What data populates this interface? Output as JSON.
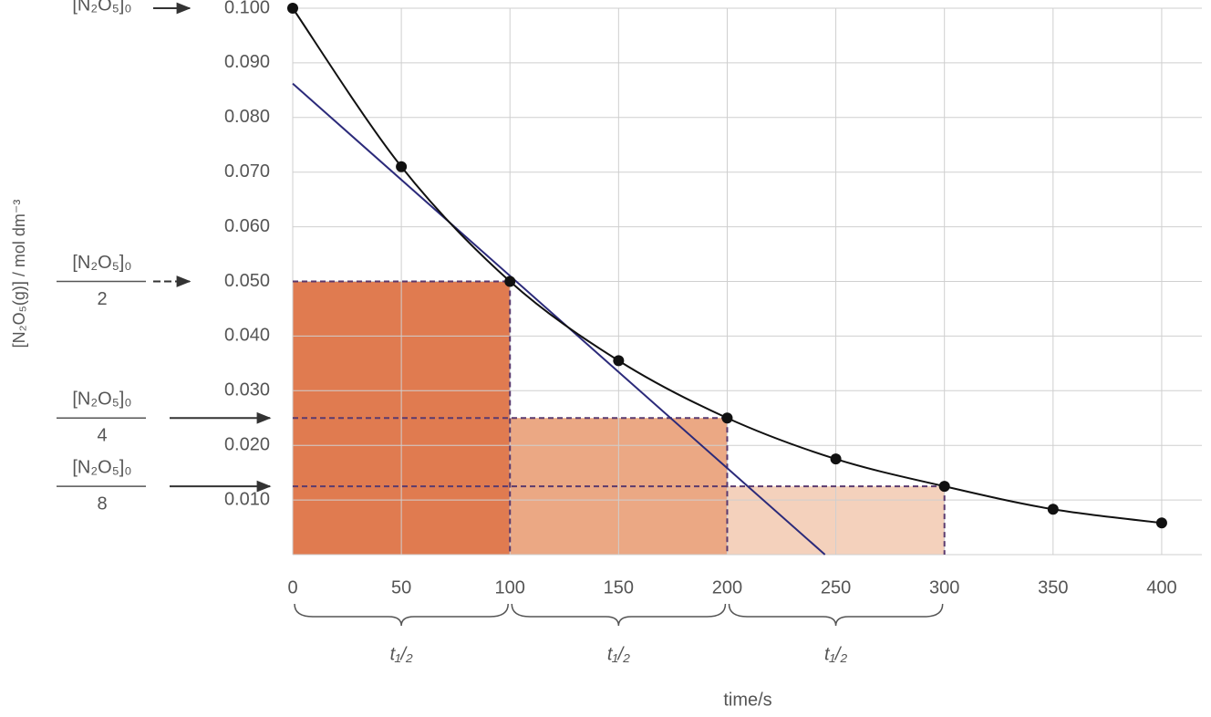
{
  "chart_data": {
    "type": "scatter",
    "x_label": "time/s",
    "y_label": "[N₂O₅(g)] / mol dm⁻³",
    "x": [
      0,
      50,
      100,
      150,
      200,
      250,
      300,
      350,
      400
    ],
    "series": [
      {
        "color": "#111111",
        "values": [
          0.1,
          0.071,
          0.05,
          0.0355,
          0.025,
          0.0175,
          0.0125,
          0.0083,
          0.0058
        ]
      }
    ],
    "curve": true,
    "tangent": {
      "x": [
        0,
        245
      ],
      "values": [
        0.0862,
        0
      ],
      "color": "#2b2a7a"
    },
    "xlim": [
      0,
      418.5
    ],
    "ylim": [
      0,
      0.1
    ],
    "xticks": [
      0,
      50,
      100,
      150,
      200,
      250,
      300,
      350,
      400
    ],
    "yticks": [
      {
        "value": 0.01,
        "label": "0.010"
      },
      {
        "value": 0.02,
        "label": "0.020"
      },
      {
        "value": 0.03,
        "label": "0.030"
      },
      {
        "value": 0.04,
        "label": "0.040"
      },
      {
        "value": 0.05,
        "label": "0.050"
      },
      {
        "value": 0.06,
        "label": "0.060"
      },
      {
        "value": 0.07,
        "label": "0.070"
      },
      {
        "value": 0.08,
        "label": "0.080"
      },
      {
        "value": 0.09,
        "label": "0.090"
      },
      {
        "value": 0.1,
        "label": "0.100"
      }
    ],
    "grid": true,
    "half_lives": [
      {
        "x": [
          0,
          100
        ],
        "value": 0.05,
        "color": "#e07b50",
        "label": "t₁/₂"
      },
      {
        "x": [
          100,
          200
        ],
        "value": 0.025,
        "color": "#eba884",
        "label": "t₁/₂"
      },
      {
        "x": [
          200,
          300
        ],
        "value": 0.0125,
        "color": "#f4d1bc",
        "label": "t₁/₂"
      }
    ],
    "annotations": [
      {
        "text": "[N₂O₅]₀",
        "value": 0.1
      },
      {
        "text": "[N₂O₅]₀",
        "denominator": "2",
        "value": 0.05
      },
      {
        "text": "[N₂O₅]₀",
        "denominator": "4",
        "value": 0.025
      },
      {
        "text": "[N₂O₅]₀",
        "denominator": "8",
        "value": 0.0125
      }
    ]
  }
}
